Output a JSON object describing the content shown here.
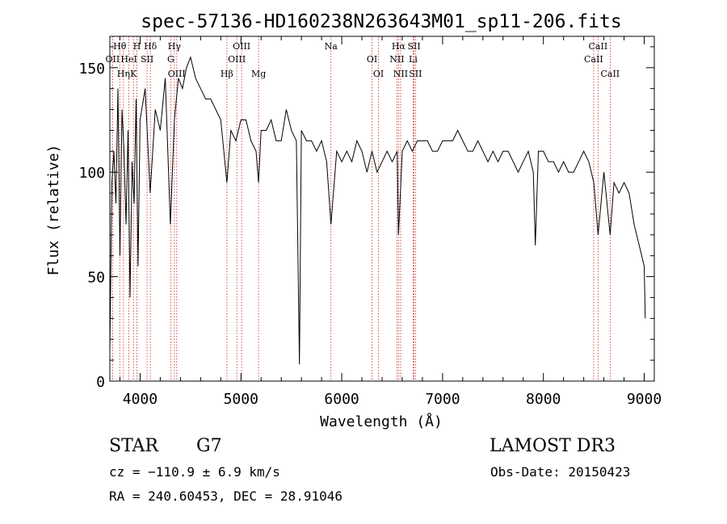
{
  "chart_data": {
    "type": "line",
    "title": "spec-57136-HD160238N263643M01_sp11-206.fits",
    "xlabel": "Wavelength (Å)",
    "ylabel": "Flux (relative)",
    "xlim": [
      3700,
      9100
    ],
    "ylim": [
      0,
      165
    ],
    "xticks": [
      4000,
      5000,
      6000,
      7000,
      8000,
      9000
    ],
    "yticks": [
      0,
      50,
      100,
      150
    ],
    "grid": false,
    "series": [
      {
        "name": "spectrum",
        "x": [
          3700,
          3720,
          3740,
          3760,
          3780,
          3800,
          3820,
          3840,
          3860,
          3880,
          3900,
          3920,
          3940,
          3960,
          3980,
          4000,
          4050,
          4100,
          4150,
          4200,
          4250,
          4300,
          4340,
          4380,
          4420,
          4460,
          4500,
          4550,
          4600,
          4650,
          4700,
          4750,
          4800,
          4861,
          4900,
          4950,
          5000,
          5050,
          5100,
          5150,
          5175,
          5200,
          5250,
          5300,
          5350,
          5400,
          5450,
          5500,
          5550,
          5580,
          5600,
          5650,
          5700,
          5750,
          5800,
          5850,
          5893,
          5950,
          6000,
          6050,
          6100,
          6150,
          6200,
          6250,
          6300,
          6350,
          6400,
          6450,
          6500,
          6550,
          6563,
          6600,
          6650,
          6700,
          6750,
          6800,
          6850,
          6900,
          6950,
          7000,
          7050,
          7100,
          7150,
          7200,
          7250,
          7300,
          7350,
          7400,
          7450,
          7500,
          7550,
          7600,
          7650,
          7700,
          7750,
          7800,
          7850,
          7900,
          7920,
          7950,
          8000,
          8050,
          8100,
          8150,
          8200,
          8250,
          8300,
          8350,
          8400,
          8450,
          8500,
          8542,
          8600,
          8662,
          8700,
          8750,
          8800,
          8850,
          8900,
          8950,
          9000,
          9010
        ],
        "y": [
          15,
          95,
          110,
          85,
          140,
          60,
          130,
          110,
          75,
          120,
          40,
          105,
          85,
          135,
          55,
          125,
          140,
          90,
          130,
          120,
          145,
          75,
          125,
          145,
          140,
          150,
          155,
          145,
          140,
          135,
          135,
          130,
          125,
          95,
          120,
          115,
          125,
          125,
          115,
          110,
          95,
          120,
          120,
          125,
          115,
          115,
          130,
          120,
          115,
          8,
          120,
          115,
          115,
          110,
          115,
          105,
          75,
          110,
          105,
          110,
          105,
          115,
          110,
          100,
          110,
          100,
          105,
          110,
          105,
          110,
          70,
          110,
          115,
          110,
          115,
          115,
          115,
          110,
          110,
          115,
          115,
          115,
          120,
          115,
          110,
          110,
          115,
          110,
          105,
          110,
          105,
          110,
          110,
          105,
          100,
          105,
          110,
          100,
          65,
          110,
          110,
          105,
          105,
          100,
          105,
          100,
          100,
          105,
          110,
          105,
          95,
          70,
          100,
          70,
          95,
          90,
          95,
          90,
          75,
          65,
          55,
          30
        ]
      }
    ],
    "lines": [
      {
        "label": "Hθ",
        "x": 3798
      },
      {
        "label": "OII",
        "x": 3727
      },
      {
        "label": "K",
        "x": 3934
      },
      {
        "label": "H",
        "x": 3969
      },
      {
        "label": "HeI",
        "x": 3889
      },
      {
        "label": "Hη",
        "x": 3835
      },
      {
        "label": "Hδ",
        "x": 4102
      },
      {
        "label": "SII",
        "x": 4069
      },
      {
        "label": "OIII",
        "x": 4363
      },
      {
        "label": "Hγ",
        "x": 4340
      },
      {
        "label": "G",
        "x": 4304
      },
      {
        "label": "Hβ",
        "x": 4861
      },
      {
        "label": "OIII",
        "x": 5007
      },
      {
        "label": "OIII",
        "x": 4959
      },
      {
        "label": "Mg",
        "x": 5175
      },
      {
        "label": "Na",
        "x": 5893
      },
      {
        "label": "OI",
        "x": 6300
      },
      {
        "label": "OI",
        "x": 6364
      },
      {
        "label": "Hα",
        "x": 6563
      },
      {
        "label": "NII",
        "x": 6548
      },
      {
        "label": "NII",
        "x": 6584
      },
      {
        "label": "SII",
        "x": 6717
      },
      {
        "label": "Li",
        "x": 6708
      },
      {
        "label": "SII",
        "x": 6731
      },
      {
        "label": "CaII",
        "x": 8542
      },
      {
        "label": "CaII",
        "x": 8498
      },
      {
        "label": "CaII",
        "x": 8662
      }
    ]
  },
  "info": {
    "object_class": "STAR",
    "subclass": "G7",
    "survey": "LAMOST DR3",
    "redshift": "cz = −110.9 ± 6.9 km/s",
    "obs_date": "Obs-Date: 20150423",
    "coords": "RA = 240.60453, DEC =  28.91046"
  },
  "colors": {
    "line_marker": "#cc2222",
    "spectrum": "#000000"
  }
}
